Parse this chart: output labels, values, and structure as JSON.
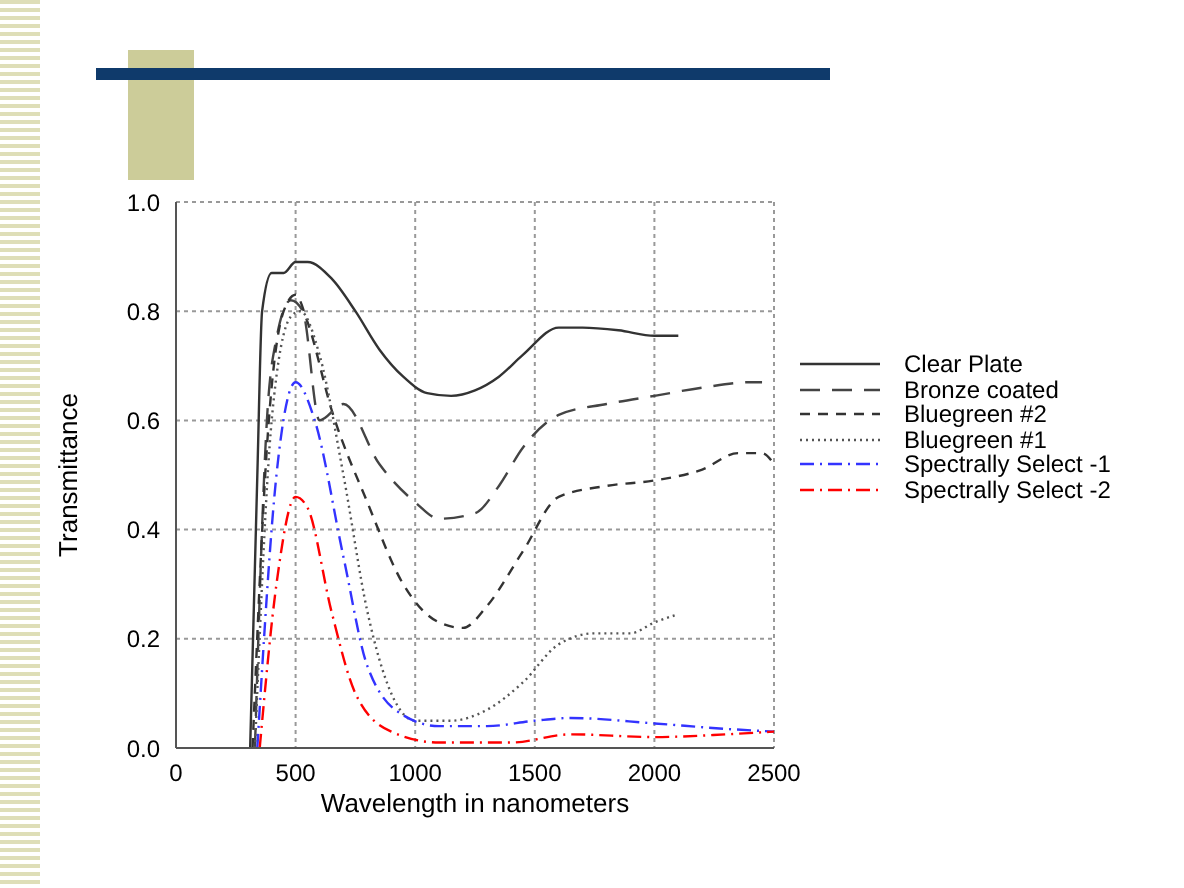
{
  "chart_data": {
    "type": "line",
    "xlabel": "Wavelength in nanometers",
    "ylabel": "Transmittance",
    "xlim": [
      0,
      2500
    ],
    "xticks": [
      0,
      500,
      1000,
      1500,
      2000,
      2500
    ],
    "ylim": [
      0,
      1
    ],
    "yticks": [
      {
        "value": 0,
        "label": "0.0"
      },
      {
        "value": 0.2,
        "label": "0.2"
      },
      {
        "value": 0.4,
        "label": "0.4"
      },
      {
        "value": 0.6,
        "label": "0.6"
      },
      {
        "value": 0.8,
        "label": "0.8"
      },
      {
        "value": 1,
        "label": "1.0"
      }
    ],
    "grid": true,
    "legend": "right",
    "marker": "none",
    "series": [
      {
        "name": "Clear Plate",
        "color": "#333333",
        "line_style": "solid",
        "x": [
          310,
          340,
          360,
          400,
          450,
          500,
          550,
          650,
          750,
          850,
          950,
          1050,
          1150,
          1250,
          1350,
          1450,
          1600,
          1700,
          1850,
          2000,
          2100
        ],
        "values": [
          0,
          0.5,
          0.8,
          0.87,
          0.87,
          0.89,
          0.89,
          0.86,
          0.8,
          0.73,
          0.68,
          0.65,
          0.645,
          0.655,
          0.68,
          0.72,
          0.77,
          0.77,
          0.765,
          0.755,
          0.755
        ]
      },
      {
        "name": "Bronze coated",
        "color": "#444444",
        "line_style": "longdash",
        "x": [
          330,
          380,
          420,
          480,
          530,
          600,
          700,
          850,
          1000,
          1100,
          1250,
          1350,
          1450,
          1600,
          1800,
          2000,
          2200,
          2400,
          2450
        ],
        "values": [
          0,
          0.6,
          0.75,
          0.82,
          0.8,
          0.6,
          0.63,
          0.52,
          0.45,
          0.42,
          0.43,
          0.48,
          0.55,
          0.61,
          0.63,
          0.645,
          0.66,
          0.67,
          0.67
        ]
      },
      {
        "name": "Bluegreen #2",
        "color": "#333333",
        "line_style": "dashed",
        "x": [
          320,
          380,
          450,
          500,
          550,
          650,
          800,
          950,
          1100,
          1200,
          1300,
          1450,
          1600,
          1800,
          2000,
          2200,
          2350,
          2450,
          2500
        ],
        "values": [
          0,
          0.55,
          0.8,
          0.83,
          0.78,
          0.62,
          0.45,
          0.3,
          0.23,
          0.22,
          0.26,
          0.36,
          0.46,
          0.48,
          0.49,
          0.51,
          0.54,
          0.54,
          0.52
        ]
      },
      {
        "name": "Bluegreen #1",
        "color": "#555555",
        "line_style": "dotted",
        "x": [
          330,
          400,
          480,
          520,
          600,
          700,
          800,
          900,
          1000,
          1150,
          1300,
          1450,
          1600,
          1750,
          1900,
          2000,
          2100
        ],
        "values": [
          0,
          0.6,
          0.79,
          0.8,
          0.72,
          0.5,
          0.25,
          0.1,
          0.05,
          0.05,
          0.07,
          0.12,
          0.19,
          0.21,
          0.21,
          0.23,
          0.245
        ]
      },
      {
        "name": "Spectrally Select -1",
        "color": "#3333ff",
        "line_style": "dashdot",
        "x": [
          340,
          420,
          500,
          580,
          700,
          800,
          950,
          1100,
          1300,
          1500,
          1650,
          2000,
          2300,
          2500
        ],
        "values": [
          0,
          0.5,
          0.67,
          0.6,
          0.35,
          0.15,
          0.06,
          0.04,
          0.04,
          0.05,
          0.055,
          0.045,
          0.035,
          0.03
        ]
      },
      {
        "name": "Spectrally Select -2",
        "color": "#ff0000",
        "line_style": "dashdot",
        "x": [
          350,
          420,
          500,
          550,
          650,
          750,
          900,
          1100,
          1400,
          1650,
          2000,
          2300,
          2500
        ],
        "values": [
          0,
          0.3,
          0.46,
          0.44,
          0.25,
          0.1,
          0.03,
          0.01,
          0.01,
          0.025,
          0.02,
          0.025,
          0.03
        ]
      }
    ]
  }
}
